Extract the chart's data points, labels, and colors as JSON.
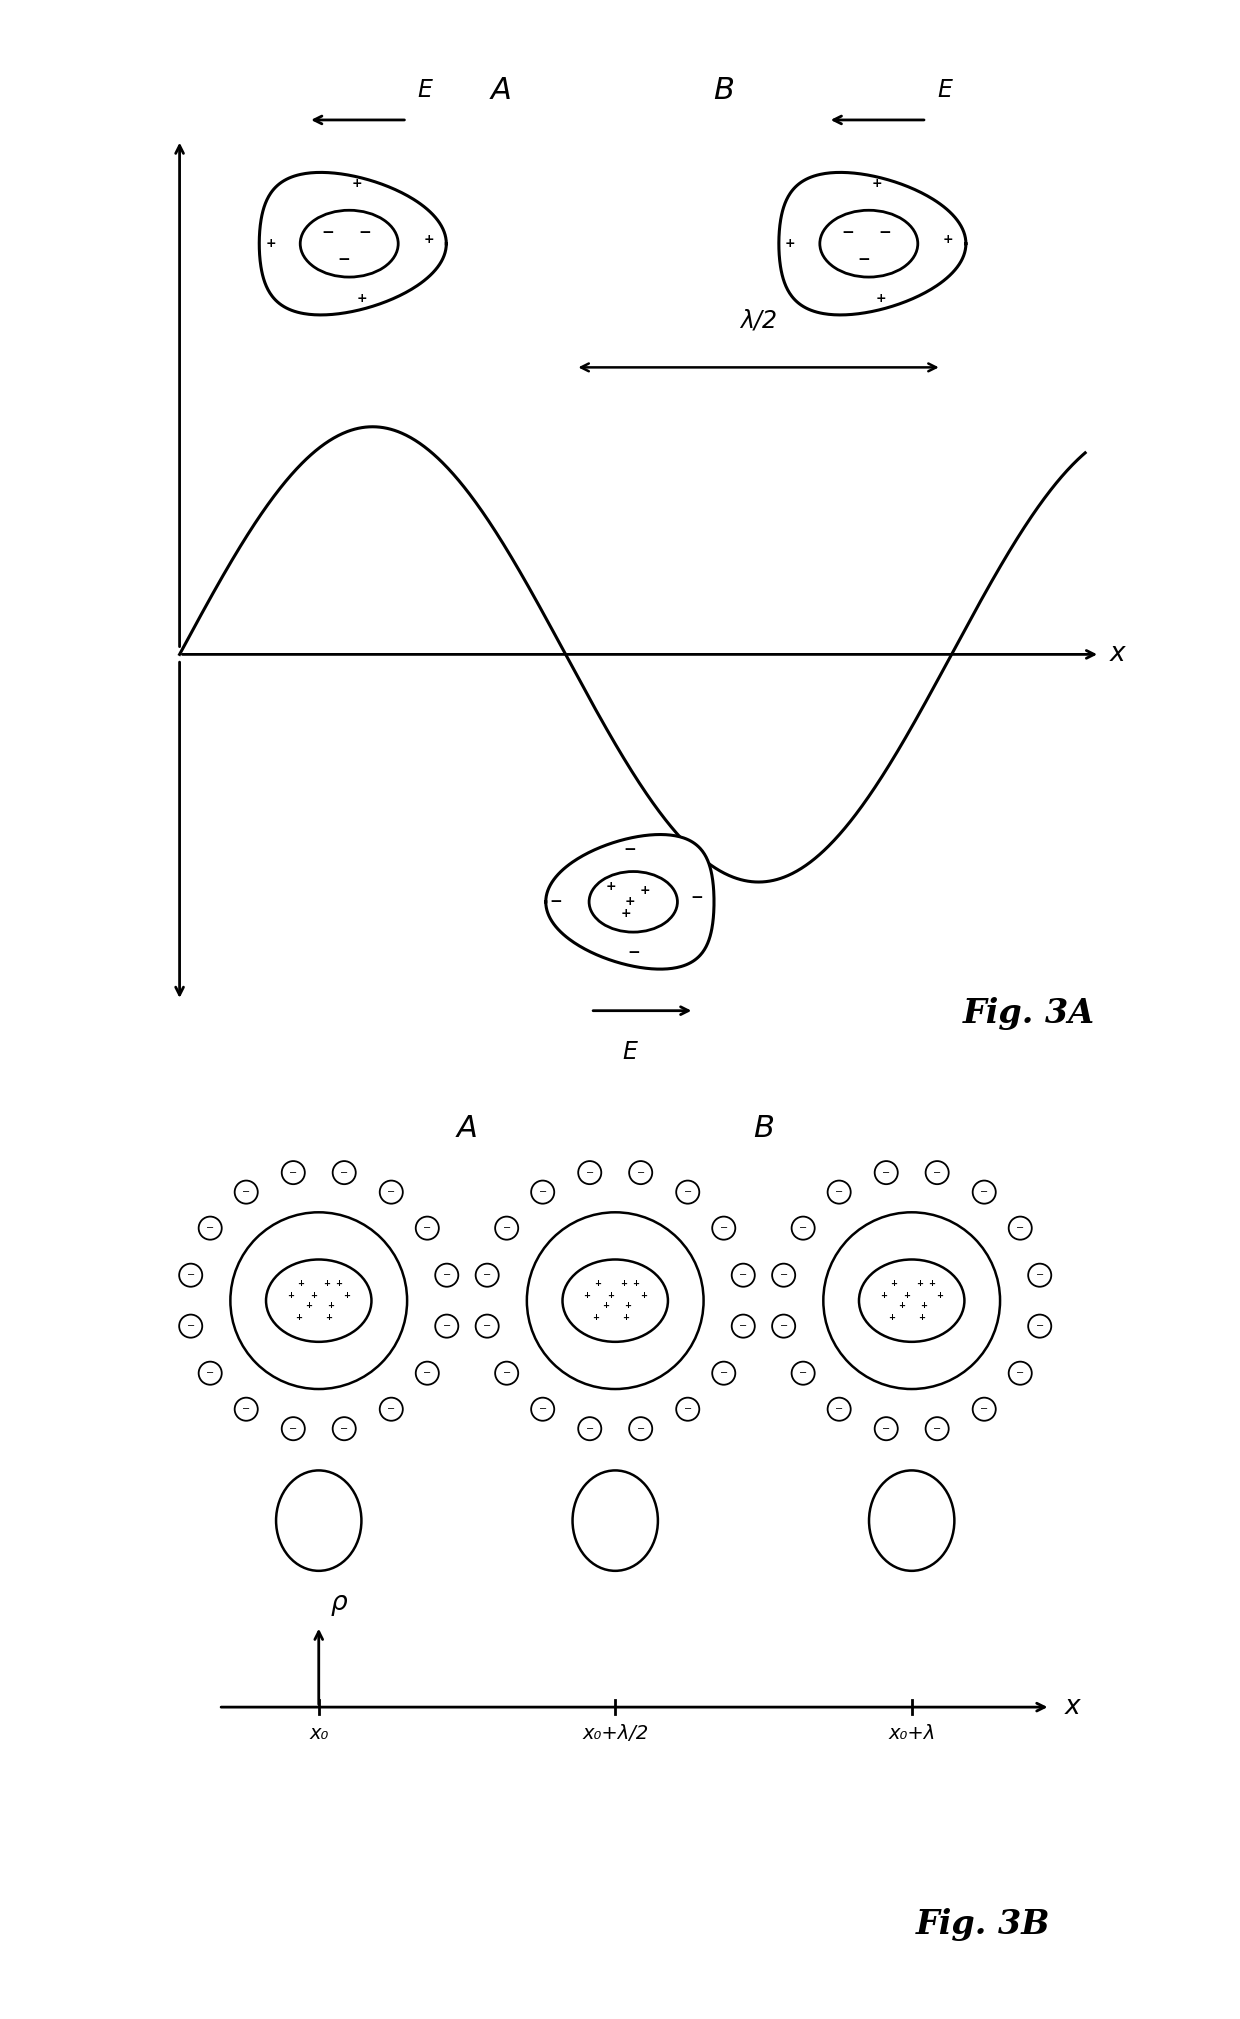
{
  "bg_color": "#ffffff",
  "fig3a": {
    "label_A": "A",
    "label_B": "B",
    "label_E": "E",
    "label_lambda": "λ/2",
    "label_x": "x",
    "fig_label": "Fig. 3A"
  },
  "fig3b": {
    "label_A": "A",
    "label_B": "B",
    "label_rho": "ρ",
    "label_x": "x",
    "label_x0": "x₀",
    "label_x0_lambda2": "x₀+λ/2",
    "label_x0_lambda": "x₀+λ",
    "fig_label": "Fig. 3B"
  }
}
